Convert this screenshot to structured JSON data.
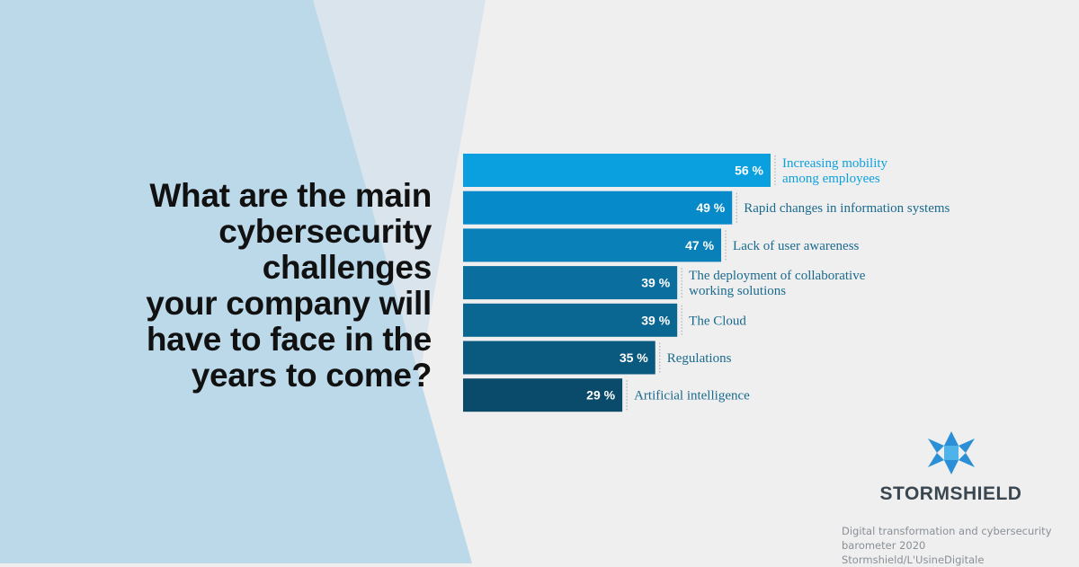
{
  "question": "What are the main\ncybersecurity\nchallenges\nyour company will\nhave to face in the\nyears to come?",
  "brand": {
    "name": "STORMSHIELD"
  },
  "source": "Digital transformation and cybersecurity\nbarometer 2020 Stormshield/L'UsineDigitale",
  "colors": {
    "label_text": "#1a6a8e",
    "label_text_highlight": "#0ea0dc",
    "logo_blue": "#2a8fd6"
  },
  "chart_data": {
    "type": "bar",
    "orientation": "horizontal",
    "categories": [
      [
        "Increasing mobility",
        "among employees"
      ],
      [
        "Rapid changes in information systems"
      ],
      [
        "Lack of user awareness"
      ],
      [
        "The deployment of collaborative",
        "working solutions"
      ],
      [
        "The Cloud"
      ],
      [
        "Regulations"
      ],
      [
        "Artificial intelligence"
      ]
    ],
    "values": [
      56,
      49,
      47,
      39,
      39,
      35,
      29
    ],
    "value_labels": [
      "56 %",
      "49 %",
      "47 %",
      "39 %",
      "39 %",
      "35 %",
      "29 %"
    ],
    "bar_colors": [
      "#0aa0e0",
      "#068ac9",
      "#0a80b8",
      "#0a6e9e",
      "#0a6792",
      "#0a5a80",
      "#0a4a6b"
    ],
    "unit": "%",
    "xlim": [
      0,
      56
    ]
  }
}
